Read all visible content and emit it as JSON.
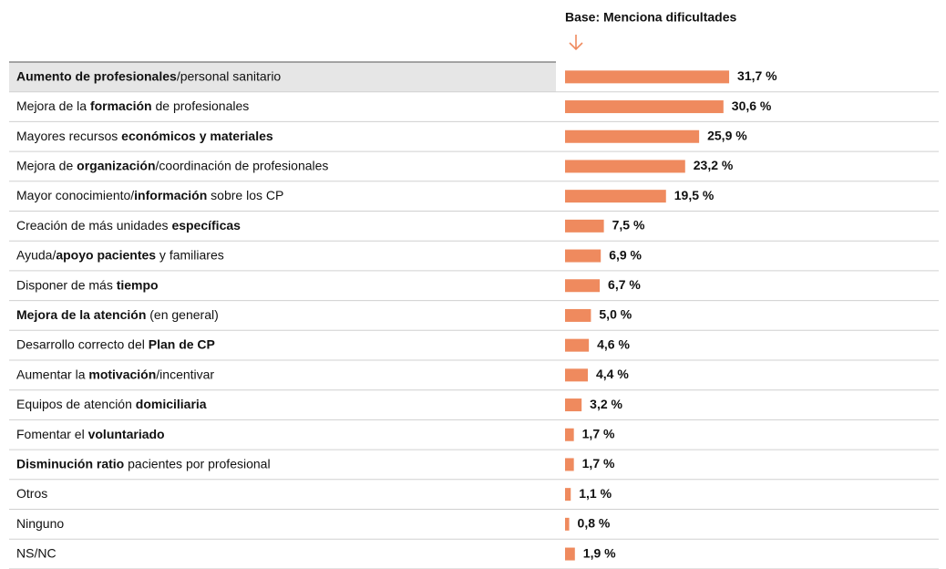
{
  "chart_data": {
    "type": "bar",
    "orientation": "horizontal",
    "header": "Base: Menciona dificultades",
    "color": "#ef8a5e",
    "categories": [
      [
        {
          "text": "Aumento de profesionales",
          "bold": true
        },
        {
          "text": "/personal sanitario",
          "bold": false
        }
      ],
      [
        {
          "text": "Mejora de la ",
          "bold": false
        },
        {
          "text": "formación",
          "bold": true
        },
        {
          "text": " de profesionales",
          "bold": false
        }
      ],
      [
        {
          "text": "Mayores recursos ",
          "bold": false
        },
        {
          "text": "económicos y materiales",
          "bold": true
        }
      ],
      [
        {
          "text": "Mejora de ",
          "bold": false
        },
        {
          "text": "organización",
          "bold": true
        },
        {
          "text": "/coordinación de profesionales",
          "bold": false
        }
      ],
      [
        {
          "text": "Mayor conocimiento/",
          "bold": false
        },
        {
          "text": "información",
          "bold": true
        },
        {
          "text": " sobre los CP",
          "bold": false
        }
      ],
      [
        {
          "text": "Creación de más unidades ",
          "bold": false
        },
        {
          "text": "específicas",
          "bold": true
        }
      ],
      [
        {
          "text": "Ayuda/",
          "bold": false
        },
        {
          "text": "apoyo pacientes",
          "bold": true
        },
        {
          "text": " y familiares",
          "bold": false
        }
      ],
      [
        {
          "text": "Disponer de más ",
          "bold": false
        },
        {
          "text": "tiempo",
          "bold": true
        }
      ],
      [
        {
          "text": "Mejora de la atención",
          "bold": true
        },
        {
          "text": " (en general)",
          "bold": false
        }
      ],
      [
        {
          "text": "Desarrollo correcto del ",
          "bold": false
        },
        {
          "text": "Plan de CP",
          "bold": true
        }
      ],
      [
        {
          "text": "Aumentar la ",
          "bold": false
        },
        {
          "text": "motivación",
          "bold": true
        },
        {
          "text": "/incentivar",
          "bold": false
        }
      ],
      [
        {
          "text": "Equipos de atención ",
          "bold": false
        },
        {
          "text": "domiciliaria",
          "bold": true
        }
      ],
      [
        {
          "text": "Fomentar el ",
          "bold": false
        },
        {
          "text": "voluntariado",
          "bold": true
        }
      ],
      [
        {
          "text": "Disminución ratio",
          "bold": true
        },
        {
          "text": " pacientes por profesional",
          "bold": false
        }
      ],
      [
        {
          "text": "Otros",
          "bold": false
        }
      ],
      [
        {
          "text": "Ninguno",
          "bold": false
        }
      ],
      [
        {
          "text": "NS/NC",
          "bold": false
        }
      ]
    ],
    "values": [
      31.7,
      30.6,
      25.9,
      23.2,
      19.5,
      7.5,
      6.9,
      6.7,
      5.0,
      4.6,
      4.4,
      3.2,
      1.7,
      1.7,
      1.1,
      0.8,
      1.9
    ],
    "value_labels": [
      "31,7 %",
      "30,6 %",
      "25,9 %",
      "23,2 %",
      "19,5 %",
      "7,5 %",
      "6,9 %",
      "6,7 %",
      "5,0 %",
      "4,6 %",
      "4,4 %",
      "3,2 %",
      "1,7 %",
      "1,7 %",
      "1,1 %",
      "0,8 %",
      "1,9 %"
    ],
    "value_label_colors": [
      "#c8102e",
      "#c8102e",
      "#000000",
      "#000000",
      "#000000",
      "#000000",
      "#000000",
      "#000000",
      "#000000",
      "#000000",
      "#000000",
      "#000000",
      "#000000",
      "#000000",
      "#000000",
      "#000000",
      "#000000"
    ]
  }
}
